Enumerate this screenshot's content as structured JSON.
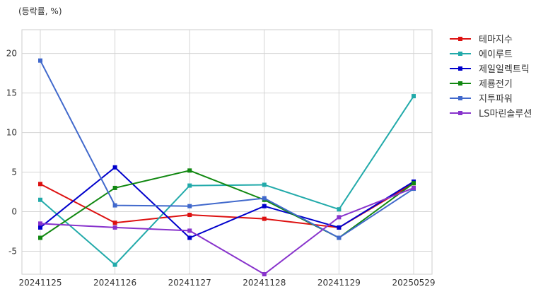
{
  "chart_data": {
    "type": "line",
    "unit_label": "(등락률, %)",
    "categories": [
      "20241125",
      "20241126",
      "20241127",
      "20241128",
      "20241129",
      "20250529"
    ],
    "ylim": [
      -7.9,
      23
    ],
    "yticks": [
      -5,
      0,
      5,
      10,
      15,
      20
    ],
    "grid": true,
    "legend_position": "right",
    "series": [
      {
        "name": "테마지수",
        "color": "#dd1111",
        "values": [
          3.5,
          -1.4,
          -0.4,
          -0.9,
          -2.0,
          3.6
        ]
      },
      {
        "name": "에이루트",
        "color": "#22aaaa",
        "values": [
          1.5,
          -6.7,
          3.3,
          3.4,
          0.3,
          14.6
        ]
      },
      {
        "name": "제일일렉트릭",
        "color": "#0000cc",
        "values": [
          -2.0,
          5.6,
          -3.3,
          0.7,
          -2.0,
          3.8
        ]
      },
      {
        "name": "제룡전기",
        "color": "#118811",
        "values": [
          -3.3,
          3.0,
          5.2,
          1.5,
          -3.3,
          3.6
        ]
      },
      {
        "name": "지투파워",
        "color": "#4169cc",
        "values": [
          19.1,
          0.8,
          0.7,
          1.7,
          -3.3,
          2.9
        ]
      },
      {
        "name": "LS마린솔루션",
        "color": "#8833cc",
        "values": [
          -1.5,
          -2.0,
          -2.4,
          -7.9,
          -0.7,
          3.0
        ]
      }
    ]
  }
}
